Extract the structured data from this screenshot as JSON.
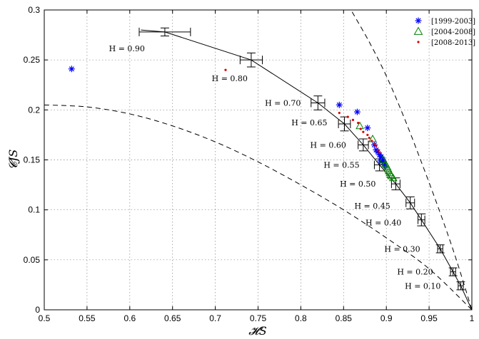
{
  "chart_data": {
    "type": "scatter",
    "title": "",
    "xlabel": "𝓗S",
    "ylabel": "𝓒JS",
    "xlim": [
      0.5,
      1.0
    ],
    "ylim": [
      0.0,
      0.3
    ],
    "grid": true,
    "legend_position": "top-right",
    "x_ticks": [
      "0.5",
      "0.55",
      "0.6",
      "0.65",
      "0.7",
      "0.75",
      "0.8",
      "0.85",
      "0.9",
      "0.95",
      "1"
    ],
    "y_ticks": [
      "0",
      "0.05",
      "0.1",
      "0.15",
      "0.2",
      "0.25",
      "0.3"
    ],
    "x_tick_values": [
      0.5,
      0.55,
      0.6,
      0.65,
      0.7,
      0.75,
      0.8,
      0.85,
      0.9,
      0.95,
      1.0
    ],
    "y_tick_values": [
      0,
      0.05,
      0.1,
      0.15,
      0.2,
      0.25,
      0.3
    ],
    "series": [
      {
        "name": "[1999-2003]",
        "marker": "asterisk",
        "color": "#0000ff",
        "points": [
          [
            0.532,
            0.241
          ],
          [
            0.845,
            0.205
          ],
          [
            0.866,
            0.198
          ],
          [
            0.878,
            0.182
          ],
          [
            0.886,
            0.165
          ],
          [
            0.888,
            0.16
          ],
          [
            0.89,
            0.158
          ],
          [
            0.892,
            0.155
          ],
          [
            0.894,
            0.153
          ],
          [
            0.896,
            0.15
          ],
          [
            0.897,
            0.148
          ],
          [
            0.898,
            0.146
          ],
          [
            0.899,
            0.144
          ],
          [
            0.895,
            0.151
          ],
          [
            0.893,
            0.149
          ]
        ]
      },
      {
        "name": "[2004-2008]",
        "marker": "triangle",
        "color": "#008000",
        "points": [
          [
            0.869,
            0.184
          ],
          [
            0.884,
            0.171
          ],
          [
            0.896,
            0.15
          ],
          [
            0.899,
            0.146
          ],
          [
            0.901,
            0.143
          ],
          [
            0.902,
            0.141
          ],
          [
            0.903,
            0.139
          ],
          [
            0.904,
            0.137
          ],
          [
            0.905,
            0.135
          ],
          [
            0.906,
            0.134
          ],
          [
            0.908,
            0.132
          ]
        ]
      },
      {
        "name": "[2008-2013]",
        "marker": "dot",
        "color": "#dd0000",
        "points": [
          [
            0.712,
            0.24
          ],
          [
            0.845,
            0.197
          ],
          [
            0.855,
            0.193
          ],
          [
            0.861,
            0.19
          ],
          [
            0.867,
            0.187
          ],
          [
            0.87,
            0.181
          ],
          [
            0.873,
            0.178
          ],
          [
            0.878,
            0.175
          ],
          [
            0.88,
            0.172
          ],
          [
            0.883,
            0.169
          ],
          [
            0.886,
            0.166
          ],
          [
            0.888,
            0.164
          ],
          [
            0.89,
            0.16
          ],
          [
            0.892,
            0.157
          ]
        ]
      }
    ],
    "reference_curve": {
      "name": "",
      "points": [
        {
          "label": "H = 0.90",
          "x": 0.641,
          "y": 0.278,
          "xerr": 0.03,
          "yerr": 0.004
        },
        {
          "label": "H = 0.80",
          "x": 0.742,
          "y": 0.25,
          "xerr": 0.013,
          "yerr": 0.007
        },
        {
          "label": "H = 0.70",
          "x": 0.82,
          "y": 0.207,
          "xerr": 0.008,
          "yerr": 0.007
        },
        {
          "label": "H = 0.65",
          "x": 0.851,
          "y": 0.186,
          "xerr": 0.007,
          "yerr": 0.007
        },
        {
          "label": "H = 0.60",
          "x": 0.873,
          "y": 0.165,
          "xerr": 0.006,
          "yerr": 0.006
        },
        {
          "label": "H = 0.55",
          "x": 0.892,
          "y": 0.145,
          "xerr": 0.006,
          "yerr": 0.006
        },
        {
          "label": "H = 0.50",
          "x": 0.911,
          "y": 0.126,
          "xerr": 0.005,
          "yerr": 0.006
        },
        {
          "label": "H = 0.45",
          "x": 0.928,
          "y": 0.107,
          "xerr": 0.005,
          "yerr": 0.006
        },
        {
          "label": "H = 0.40",
          "x": 0.941,
          "y": 0.09,
          "xerr": 0.004,
          "yerr": 0.006
        },
        {
          "label": "H = 0.30",
          "x": 0.963,
          "y": 0.061,
          "xerr": 0.003,
          "yerr": 0.004
        },
        {
          "label": "H = 0.20",
          "x": 0.978,
          "y": 0.038,
          "xerr": 0.003,
          "yerr": 0.004
        },
        {
          "label": "H = 0.10",
          "x": 0.987,
          "y": 0.024,
          "xerr": 0.003,
          "yerr": 0.004
        }
      ]
    },
    "lower_bound_curve": [
      [
        0.5,
        0.205
      ],
      [
        0.55,
        0.203
      ],
      [
        0.6,
        0.196
      ],
      [
        0.65,
        0.184
      ],
      [
        0.7,
        0.168
      ],
      [
        0.75,
        0.148
      ],
      [
        0.8,
        0.125
      ],
      [
        0.85,
        0.1
      ],
      [
        0.9,
        0.072
      ],
      [
        0.95,
        0.041
      ],
      [
        1.0,
        0.0
      ]
    ],
    "upper_bound_curve": [
      [
        0.86,
        0.298
      ],
      [
        0.88,
        0.268
      ],
      [
        0.9,
        0.234
      ],
      [
        0.92,
        0.194
      ],
      [
        0.94,
        0.15
      ],
      [
        0.96,
        0.104
      ],
      [
        0.98,
        0.055
      ],
      [
        1.0,
        0.0
      ]
    ]
  }
}
